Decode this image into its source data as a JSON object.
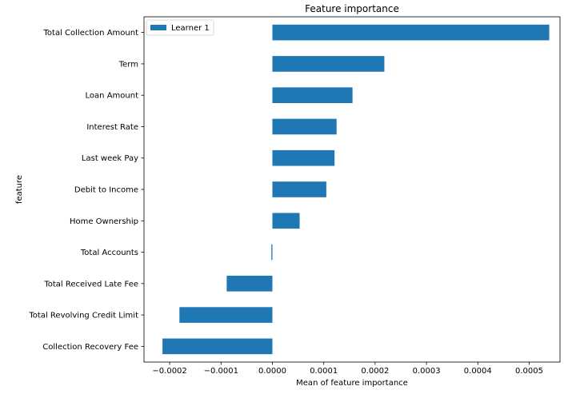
{
  "chart_data": {
    "type": "bar",
    "orientation": "horizontal",
    "title": "Feature importance",
    "xlabel": "Mean of feature importance",
    "ylabel": "feature",
    "xlim": [
      -0.00025,
      0.00056
    ],
    "xticks": [
      -0.0002,
      -0.0001,
      0.0,
      0.0001,
      0.0002,
      0.0003,
      0.0004,
      0.0005
    ],
    "xtick_labels": [
      "−0.0002",
      "−0.0001",
      "0.0000",
      "0.0001",
      "0.0002",
      "0.0003",
      "0.0004",
      "0.0005"
    ],
    "grid": false,
    "legend_position": "top-left",
    "categories": [
      "Total Collection Amount",
      "Term",
      "Loan Amount",
      "Interest Rate",
      "Last week Pay",
      "Debit to Income",
      "Home Ownership",
      "Total Accounts",
      "Total Received Late Fee",
      "Total Revolving Credit Limit",
      "Collection Recovery Fee"
    ],
    "series": [
      {
        "name": "Learner 1",
        "color": "#1f77b4",
        "values": [
          0.000539,
          0.000218,
          0.000156,
          0.000125,
          0.000121,
          0.000105,
          5.3e-05,
          -2e-06,
          -8.9e-05,
          -0.000181,
          -0.000214
        ]
      }
    ]
  }
}
